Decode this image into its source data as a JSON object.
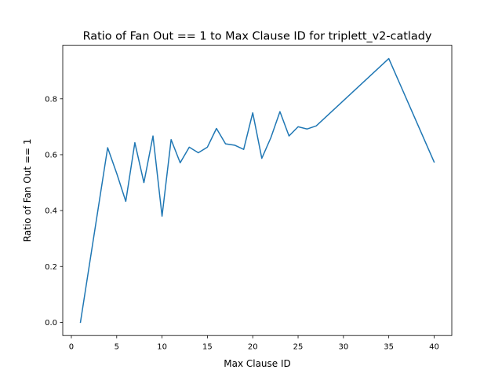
{
  "chart_data": {
    "type": "line",
    "title": "Ratio of Fan Out == 1 to Max Clause ID for triplett_v2-catlady",
    "xlabel": "Max Clause ID",
    "ylabel": "Ratio of Fan Out == 1",
    "xlim": [
      -0.95,
      41.95
    ],
    "ylim": [
      -0.0472,
      0.9917
    ],
    "xticks": [
      0,
      5,
      10,
      15,
      20,
      25,
      30,
      35,
      40
    ],
    "xtick_labels": [
      "0",
      "5",
      "10",
      "15",
      "20",
      "25",
      "30",
      "35",
      "40"
    ],
    "yticks": [
      0.0,
      0.2,
      0.4,
      0.6,
      0.8
    ],
    "ytick_labels": [
      "0.0",
      "0.2",
      "0.4",
      "0.6",
      "0.8"
    ],
    "grid": false,
    "line_color": "#1f77b4",
    "series": [
      {
        "x": [
          1,
          4,
          5,
          6,
          7,
          8,
          9,
          10,
          11,
          12,
          13,
          14,
          15,
          16,
          17,
          18,
          19,
          20,
          21,
          22,
          23,
          24,
          25,
          26,
          27,
          35,
          40
        ],
        "y": [
          0.0,
          0.625,
          0.533,
          0.433,
          0.643,
          0.5,
          0.667,
          0.38,
          0.654,
          0.571,
          0.627,
          0.607,
          0.627,
          0.694,
          0.639,
          0.634,
          0.619,
          0.75,
          0.587,
          0.661,
          0.754,
          0.667,
          0.7,
          0.692,
          0.703,
          0.944,
          0.574
        ]
      }
    ]
  }
}
